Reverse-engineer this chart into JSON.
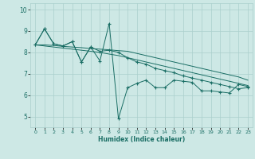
{
  "xlabel": "Humidex (Indice chaleur)",
  "xlim": [
    -0.5,
    23.5
  ],
  "ylim": [
    4.5,
    10.3
  ],
  "yticks": [
    5,
    6,
    7,
    8,
    9,
    10
  ],
  "xticks": [
    0,
    1,
    2,
    3,
    4,
    5,
    6,
    7,
    8,
    9,
    10,
    11,
    12,
    13,
    14,
    15,
    16,
    17,
    18,
    19,
    20,
    21,
    22,
    23
  ],
  "bg_color": "#cde8e5",
  "grid_color": "#aacfcc",
  "line_color": "#1a6e65",
  "series_noisy": [
    8.35,
    9.1,
    8.4,
    8.3,
    8.5,
    7.55,
    8.25,
    7.6,
    9.35,
    4.9,
    6.35,
    6.55,
    6.7,
    6.35,
    6.35,
    6.7,
    6.65,
    6.6,
    6.2,
    6.2,
    6.15,
    6.1,
    6.5,
    6.4
  ],
  "series_smooth": [
    8.35,
    9.1,
    8.4,
    8.3,
    8.5,
    7.55,
    8.25,
    8.05,
    8.1,
    8.0,
    7.75,
    7.55,
    7.45,
    7.25,
    7.15,
    7.05,
    6.9,
    6.8,
    6.7,
    6.6,
    6.5,
    6.4,
    6.3,
    6.35
  ],
  "series_linear1": [
    8.35,
    8.35,
    8.32,
    8.28,
    8.25,
    8.22,
    8.18,
    8.15,
    8.12,
    8.08,
    8.05,
    7.95,
    7.85,
    7.75,
    7.65,
    7.55,
    7.45,
    7.35,
    7.25,
    7.15,
    7.05,
    6.95,
    6.85,
    6.7
  ],
  "series_linear2": [
    8.35,
    8.3,
    8.25,
    8.2,
    8.15,
    8.1,
    8.05,
    8.0,
    7.92,
    7.85,
    7.75,
    7.65,
    7.55,
    7.45,
    7.35,
    7.25,
    7.15,
    7.05,
    6.95,
    6.85,
    6.75,
    6.65,
    6.55,
    6.45
  ]
}
